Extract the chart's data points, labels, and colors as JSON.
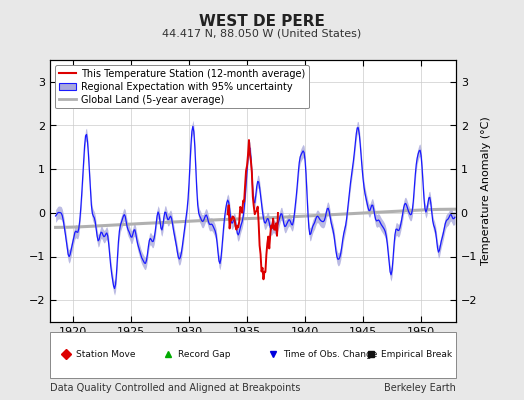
{
  "title": "WEST DE PERE",
  "subtitle": "44.417 N, 88.050 W (United States)",
  "ylabel": "Temperature Anomaly (°C)",
  "xlabel_left": "Data Quality Controlled and Aligned at Breakpoints",
  "xlabel_right": "Berkeley Earth",
  "xlim": [
    1918.0,
    1953.0
  ],
  "ylim": [
    -2.5,
    3.5
  ],
  "yticks": [
    -2,
    -1,
    0,
    1,
    2,
    3
  ],
  "xticks": [
    1920,
    1925,
    1930,
    1935,
    1940,
    1945,
    1950
  ],
  "background_color": "#e8e8e8",
  "plot_background": "#ffffff",
  "regional_color": "#1a1aff",
  "regional_uncertainty_color": "#aaaadd",
  "station_color": "#dd0000",
  "global_color": "#b0b0b0",
  "seed": 42,
  "fig_width": 5.24,
  "fig_height": 4.0,
  "dpi": 100
}
